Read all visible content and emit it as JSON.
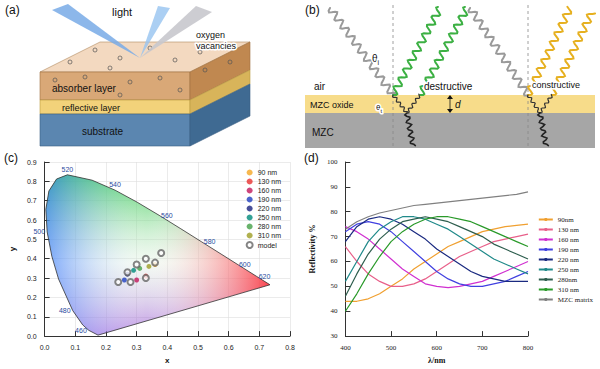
{
  "panel_a": {
    "label": "(a)",
    "light": "light",
    "vacancies": [
      "oxygen",
      "vacancies"
    ],
    "layers": [
      "absorber layer",
      "reflective layer",
      "substrate"
    ]
  },
  "panel_b": {
    "label": "(b)",
    "theta_i": {
      "symbol": "θ",
      "subscript": "i"
    },
    "theta_t": {
      "symbol": "θ",
      "subscript": "t"
    },
    "air": "air",
    "destructive": "destructive",
    "constructive": "constructive",
    "thickness": "d",
    "oxide": "MZC oxide",
    "metal": "MZC"
  },
  "chart_data": [
    {
      "label": "(c)",
      "type": "scatter",
      "x_label": "x",
      "y_label": "y",
      "xlim": [
        0,
        0.8
      ],
      "ylim": [
        0,
        0.9
      ],
      "xticks": [
        {
          "value": 0,
          "label": "0.0"
        },
        0.1,
        0.2,
        0.3,
        0.4,
        0.5,
        0.6,
        0.7,
        0.8
      ],
      "yticks": [
        {
          "value": 0,
          "label": "0.0"
        },
        0.1,
        0.2,
        0.3,
        0.4,
        0.5,
        0.6,
        0.7,
        0.8,
        0.9
      ],
      "grid": true,
      "legend": "upper right",
      "spectral_locus": {
        "color": "#333333",
        "x": [
          0.1741,
          0.144,
          0.1241,
          0.0913,
          0.0454,
          0.0235,
          0.0082,
          0.0039,
          0.0139,
          0.0389,
          0.0743,
          0.1547,
          0.2296,
          0.3016,
          0.3731,
          0.4441,
          0.5125,
          0.5752,
          0.627,
          0.6915,
          0.726,
          0.7347
        ],
        "y": [
          0.005,
          0.0297,
          0.0578,
          0.1327,
          0.295,
          0.4127,
          0.5384,
          0.6548,
          0.7502,
          0.812,
          0.8338,
          0.8059,
          0.7543,
          0.6923,
          0.6245,
          0.5547,
          0.4866,
          0.4242,
          0.3725,
          0.3083,
          0.274,
          0.2653
        ],
        "labels": [
          null,
          460,
          null,
          480,
          null,
          null,
          500,
          null,
          null,
          null,
          520,
          null,
          540,
          null,
          560,
          null,
          580,
          null,
          600,
          620,
          null,
          null
        ]
      },
      "series": [
        {
          "name": "90 nm",
          "color": "#f5a623",
          "marker": "circle",
          "x": [
            0.36
          ],
          "y": [
            0.37
          ]
        },
        {
          "name": "130 nm",
          "color": "#e8312f",
          "marker": "circle",
          "x": [
            0.33
          ],
          "y": [
            0.31
          ]
        },
        {
          "name": "160 nm",
          "color": "#c2185b",
          "marker": "circle",
          "x": [
            0.3
          ],
          "y": [
            0.29
          ]
        },
        {
          "name": "190 nm",
          "color": "#1f3fbf",
          "marker": "circle",
          "x": [
            0.26
          ],
          "y": [
            0.29
          ]
        },
        {
          "name": "220 nm",
          "color": "#1a237e",
          "marker": "circle",
          "x": [
            0.27
          ],
          "y": [
            0.32
          ]
        },
        {
          "name": "250 nm",
          "color": "#00897b",
          "marker": "circle",
          "x": [
            0.29
          ],
          "y": [
            0.34
          ]
        },
        {
          "name": "280 nm",
          "color": "#43a047",
          "marker": "circle",
          "x": [
            0.31
          ],
          "y": [
            0.35
          ]
        },
        {
          "name": "310 nm",
          "color": "#9e9d24",
          "marker": "circle",
          "x": [
            0.34
          ],
          "y": [
            0.36
          ]
        },
        {
          "name": "model",
          "color": "#666666",
          "marker": "open_circle",
          "x": [
            0.38,
            0.36,
            0.33,
            0.28,
            0.24,
            0.27,
            0.3,
            0.33
          ],
          "y": [
            0.43,
            0.38,
            0.3,
            0.28,
            0.28,
            0.33,
            0.37,
            0.4
          ]
        }
      ]
    },
    {
      "label": "(d)",
      "type": "line",
      "x_label": "λ/nm",
      "y_label": "Reflectivity %",
      "xlim": [
        400,
        800
      ],
      "ylim": [
        30,
        100
      ],
      "xticks": [
        400,
        500,
        600,
        700,
        800
      ],
      "yticks": [
        30,
        40,
        50,
        60,
        70,
        80,
        90,
        100
      ],
      "grid": false,
      "legend": "right",
      "marker": "none",
      "x": [
        400,
        425,
        450,
        475,
        500,
        525,
        550,
        575,
        600,
        625,
        650,
        675,
        700,
        725,
        750,
        775,
        800
      ],
      "series": [
        {
          "name": "90nm",
          "color": "#f0a030",
          "values": [
            44,
            44,
            45,
            47,
            50,
            53,
            57,
            60,
            63,
            66,
            68,
            70,
            72,
            73,
            74,
            74.5,
            75
          ]
        },
        {
          "name": "130 nm",
          "color": "#e8608a",
          "values": [
            66,
            60,
            55,
            52,
            50,
            50,
            51,
            53,
            56,
            59,
            62,
            64,
            66,
            68,
            69,
            70,
            71
          ]
        },
        {
          "name": "160 nm",
          "color": "#d030d0",
          "values": [
            74,
            72,
            69,
            65,
            61,
            57,
            54,
            51,
            50,
            49.5,
            50,
            51,
            52,
            54,
            56,
            58,
            60
          ]
        },
        {
          "name": "190 nm",
          "color": "#4040e0",
          "values": [
            72,
            75,
            76,
            75,
            72,
            68,
            64,
            60,
            56,
            53,
            51,
            50,
            50,
            51,
            52,
            54,
            56
          ]
        },
        {
          "name": "220 nm",
          "color": "#1a2a80",
          "values": [
            68,
            74,
            77,
            78,
            77,
            75,
            72,
            69,
            65,
            62,
            59,
            56,
            54,
            53,
            52,
            52,
            52
          ]
        },
        {
          "name": "250 nm",
          "color": "#208a8a",
          "values": [
            52,
            60,
            68,
            73,
            76,
            78,
            78,
            77,
            75,
            73,
            70,
            67,
            64,
            61,
            59,
            57,
            55
          ]
        },
        {
          "name": "280nm",
          "color": "#2e5e4e",
          "values": [
            46,
            55,
            63,
            69,
            73,
            76,
            77,
            78,
            77,
            76,
            74,
            72,
            70,
            67,
            65,
            63,
            61
          ]
        },
        {
          "name": "310 nm",
          "color": "#2a9a2a",
          "values": [
            40,
            47,
            55,
            62,
            68,
            72,
            75,
            77,
            78,
            78,
            77,
            76,
            74,
            72,
            70,
            68,
            66
          ]
        },
        {
          "name": "MZC matrix",
          "color": "#808080",
          "values": [
            73,
            76,
            78,
            79.5,
            80.5,
            81.5,
            82.5,
            83,
            83.5,
            84,
            84.5,
            85,
            85.5,
            86,
            86.5,
            87,
            88
          ]
        }
      ]
    }
  ]
}
